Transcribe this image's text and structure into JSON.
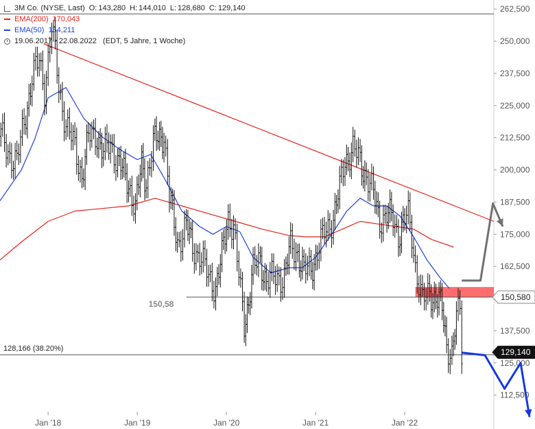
{
  "legend": {
    "title_line": "3M Co. (NYSE, Last)",
    "ohlc": {
      "open_label": "O:",
      "open": "143,280",
      "high_label": "H:",
      "high": "144,010",
      "low_label": "L:",
      "low": "128,680",
      "close_label": "C:",
      "close": "129,140"
    },
    "ema200": {
      "label": "EMA(200)",
      "value": "170,043",
      "color": "#e8211b"
    },
    "ema50": {
      "label": "EMA(50)",
      "value": "154,211",
      "color": "#1f3fe0"
    },
    "range_text": "19.06.2017 - 22.08.2022   (EDT, 5 Jahre, 1 Woche)"
  },
  "chart_data": {
    "type": "line",
    "y_axis_side": "right",
    "ylim": [
      106,
      266
    ],
    "yticks": [
      "262,500",
      "250,000",
      "237,500",
      "225,000",
      "212,500",
      "200,000",
      "187,500",
      "175,000",
      "162,500",
      "150,000",
      "137,500",
      "125,000",
      "112,500"
    ],
    "ytick_values": [
      262.5,
      250,
      237.5,
      225,
      212.5,
      200,
      187.5,
      175,
      162.5,
      150,
      137.5,
      125,
      112.5
    ],
    "x_ticks": [
      {
        "label": "Jan '18",
        "t": 2018.0
      },
      {
        "label": "Jan '19",
        "t": 2019.0
      },
      {
        "label": "Jan '20",
        "t": 2020.0
      },
      {
        "label": "Jan '21",
        "t": 2021.0
      },
      {
        "label": "Jan '22",
        "t": 2022.0
      }
    ],
    "xlim": [
      2017.46,
      2023.0
    ],
    "price_series": {
      "name": "3M Co.",
      "color": "#111111",
      "t": [
        2017.47,
        2017.55,
        2017.65,
        2017.75,
        2017.82,
        2017.9,
        2017.96,
        2018.04,
        2018.08,
        2018.12,
        2018.2,
        2018.3,
        2018.38,
        2018.45,
        2018.55,
        2018.62,
        2018.7,
        2018.78,
        2018.85,
        2018.92,
        2018.98,
        2019.05,
        2019.1,
        2019.18,
        2019.25,
        2019.3,
        2019.36,
        2019.45,
        2019.55,
        2019.62,
        2019.7,
        2019.8,
        2019.88,
        2019.95,
        2020.02,
        2020.08,
        2020.14,
        2020.2,
        2020.25,
        2020.3,
        2020.38,
        2020.45,
        2020.55,
        2020.65,
        2020.72,
        2020.8,
        2020.87,
        2020.95,
        2021.02,
        2021.1,
        2021.2,
        2021.27,
        2021.33,
        2021.42,
        2021.5,
        2021.57,
        2021.65,
        2021.72,
        2021.8,
        2021.87,
        2021.93,
        2022.0,
        2022.04,
        2022.08,
        2022.12,
        2022.2,
        2022.28,
        2022.35,
        2022.42,
        2022.47,
        2022.53,
        2022.58,
        2022.62,
        2022.64
      ],
      "close": [
        213,
        207,
        203,
        222,
        236,
        242,
        232,
        255,
        245,
        232,
        218,
        208,
        198,
        212,
        214,
        206,
        210,
        204,
        198,
        193,
        185,
        202,
        196,
        210,
        213,
        214,
        189,
        172,
        178,
        170,
        167,
        158,
        155,
        166,
        182,
        178,
        158,
        140,
        150,
        161,
        165,
        157,
        158,
        159,
        170,
        168,
        160,
        162,
        168,
        175,
        182,
        192,
        204,
        208,
        203,
        198,
        190,
        181,
        182,
        181,
        175,
        180,
        182,
        175,
        163,
        148,
        153,
        150,
        146,
        133,
        128,
        141,
        148,
        129.14
      ]
    },
    "ema200_series": {
      "name": "EMA(200)",
      "color": "#e8211b",
      "t": [
        2017.46,
        2017.7,
        2018.0,
        2018.3,
        2018.6,
        2018.9,
        2019.2,
        2019.5,
        2019.8,
        2020.1,
        2020.4,
        2020.7,
        2020.9,
        2021.1,
        2021.3,
        2021.5,
        2021.7,
        2021.9,
        2022.1,
        2022.3,
        2022.55
      ],
      "values": [
        165,
        172,
        180,
        184,
        185,
        186,
        189,
        186,
        183,
        180,
        177,
        174.5,
        174,
        174,
        177,
        180,
        179,
        178,
        177,
        173,
        170
      ]
    },
    "ema50_series": {
      "name": "EMA(50)",
      "color": "#1f3fe0",
      "t": [
        2017.46,
        2017.7,
        2017.85,
        2018.0,
        2018.2,
        2018.4,
        2018.6,
        2018.8,
        2019.0,
        2019.15,
        2019.3,
        2019.5,
        2019.7,
        2019.85,
        2020.0,
        2020.15,
        2020.3,
        2020.5,
        2020.7,
        2020.85,
        2021.0,
        2021.2,
        2021.35,
        2021.5,
        2021.65,
        2021.8,
        2021.95,
        2022.1,
        2022.25,
        2022.4,
        2022.5
      ],
      "values": [
        188,
        200,
        212,
        228,
        232,
        220,
        213,
        208,
        204,
        206,
        197,
        184,
        178,
        175,
        178,
        176,
        166,
        160,
        162,
        162,
        166,
        176,
        184,
        189,
        186,
        186,
        182,
        174,
        165,
        158,
        154
      ]
    },
    "downtrend_line": {
      "color": "#e8211b",
      "t": [
        2017.95,
        2023.0
      ],
      "values": [
        249,
        180
      ]
    },
    "horizontal_lines": [
      {
        "value": 260.6,
        "t_start": 2017.46,
        "color": "#555555"
      },
      {
        "value": 150.58,
        "t_start": 2019.55,
        "label": "150,58",
        "color": "#555555"
      },
      {
        "value": 128.166,
        "t_start": 2017.46,
        "label": "128,166 (38.20%)",
        "color": "#555555"
      }
    ],
    "resistance_zone": {
      "from": 150.58,
      "to": 154.5,
      "t_start": 2022.12,
      "t_end": 2023.0,
      "color": "#ff6e6e"
    },
    "price_tags": [
      {
        "value": 150.58,
        "label": "150,580",
        "background": "#ffffff",
        "text_color": "#222222"
      },
      {
        "value": 129.14,
        "label": "129,140",
        "background": "#111111",
        "text_color": "#ffffff"
      }
    ],
    "bull_scenario": {
      "color": "#707070",
      "t": [
        2022.64,
        2022.85,
        2022.99,
        2023.1
      ],
      "values": [
        157,
        157,
        187,
        178
      ]
    },
    "bear_scenario": {
      "color": "#1538e0",
      "t": [
        2022.64,
        2022.9,
        2023.12,
        2023.3,
        2023.4
      ],
      "values": [
        129,
        128,
        115,
        125,
        104
      ]
    }
  }
}
